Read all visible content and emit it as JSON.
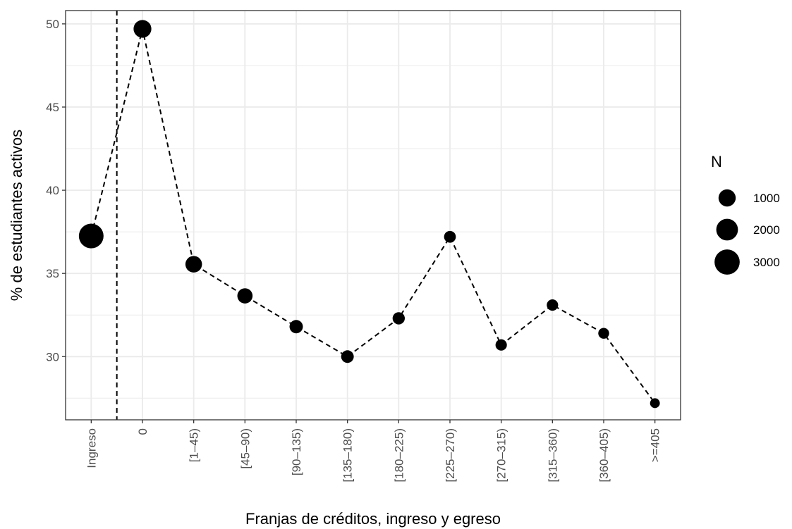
{
  "chart_data": {
    "type": "scatter",
    "xlabel": "Franjas de créditos, ingreso y egreso",
    "ylabel": "% de estudiantes activos",
    "categories": [
      "Ingreso",
      "0",
      "[1–45)",
      "[45–90)",
      "[90–135)",
      "[135–180)",
      "[180–225)",
      "[225–270)",
      "[270–315)",
      "[315–360)",
      "[360–405)",
      ">=405"
    ],
    "values": [
      37.25,
      49.7,
      35.55,
      33.65,
      31.8,
      30.0,
      32.3,
      37.2,
      30.7,
      33.1,
      31.4,
      27.2
    ],
    "sizes": [
      3300,
      1400,
      1150,
      900,
      600,
      500,
      450,
      400,
      350,
      350,
      300,
      200
    ],
    "ylim": [
      26.2,
      50.8
    ],
    "yticks": [
      30,
      35,
      40,
      45,
      50
    ],
    "grid": true,
    "line_style": "dashed",
    "vline_between": [
      "Ingreso",
      "0"
    ],
    "legend": {
      "title": "N",
      "position": "right",
      "entries": [
        {
          "label": "1000",
          "value": 1000
        },
        {
          "label": "2000",
          "value": 2000
        },
        {
          "label": "3000",
          "value": 3000
        }
      ]
    },
    "colors": {
      "point": "#000000",
      "grid": "#ebebeb",
      "panel_border": "#333333"
    }
  }
}
